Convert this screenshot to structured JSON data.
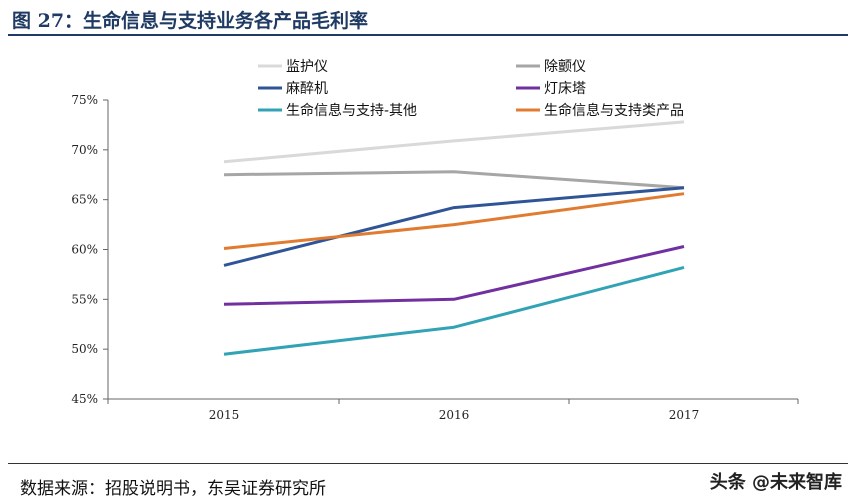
{
  "header": {
    "title": "图 27：生命信息与支持业务各产品毛利率"
  },
  "footer": {
    "source": "数据来源：招股说明书，东吴证券研究所",
    "watermark": "头条 @未来智库"
  },
  "chart_data": {
    "type": "line",
    "title": "",
    "xlabel": "",
    "ylabel": "",
    "x": [
      "2015",
      "2016",
      "2017"
    ],
    "ylim": [
      0.45,
      0.75
    ],
    "yticks": [
      "45%",
      "50%",
      "55%",
      "60%",
      "65%",
      "70%",
      "75%"
    ],
    "grid": false,
    "legend_position": "top",
    "series": [
      {
        "name": "监护仪",
        "color": "#d9d9d9",
        "values": [
          0.688,
          0.709,
          0.728
        ]
      },
      {
        "name": "除颤仪",
        "color": "#a6a6a6",
        "values": [
          0.675,
          0.678,
          0.662
        ]
      },
      {
        "name": "麻醉机",
        "color": "#2f5597",
        "values": [
          0.584,
          0.642,
          0.662
        ]
      },
      {
        "name": "灯床塔",
        "color": "#7030a0",
        "values": [
          0.545,
          0.55,
          0.603
        ]
      },
      {
        "name": "生命信息与支持-其他",
        "color": "#31a3b4",
        "values": [
          0.495,
          0.522,
          0.582
        ]
      },
      {
        "name": "生命信息与支持类产品",
        "color": "#e07b30",
        "values": [
          0.601,
          0.625,
          0.656
        ]
      }
    ]
  }
}
